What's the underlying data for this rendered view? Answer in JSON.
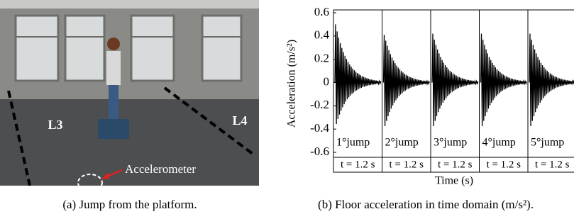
{
  "photo": {
    "labels": {
      "left": "L3",
      "right": "L4",
      "sensor": "Accelerometer"
    },
    "caption": "(a) Jump from the platform."
  },
  "chart_data": {
    "type": "waveform",
    "caption": "(b) Floor acceleration in time domain (m/s²).",
    "y_label": "Acceleration (m/s²)",
    "x_label": "Time (s)",
    "categories": [
      "1°jump",
      "2°jump",
      "3°jump",
      "4°jump",
      "5°jump"
    ],
    "durations": [
      "t = 1.2 s",
      "t = 1.2 s",
      "t = 1.2 s",
      "t = 1.2 s",
      "t = 1.2 s"
    ],
    "peaks": [
      0.5,
      0.41,
      0.42,
      0.42,
      0.42
    ],
    "troughs": [
      -0.38,
      -0.4,
      -0.4,
      -0.4,
      -0.4
    ],
    "color": "#000000",
    "ylim": [
      -0.6,
      0.6
    ],
    "yticks": [
      -0.6,
      -0.4,
      -0.2,
      0,
      0.2,
      0.4,
      0.6
    ]
  }
}
